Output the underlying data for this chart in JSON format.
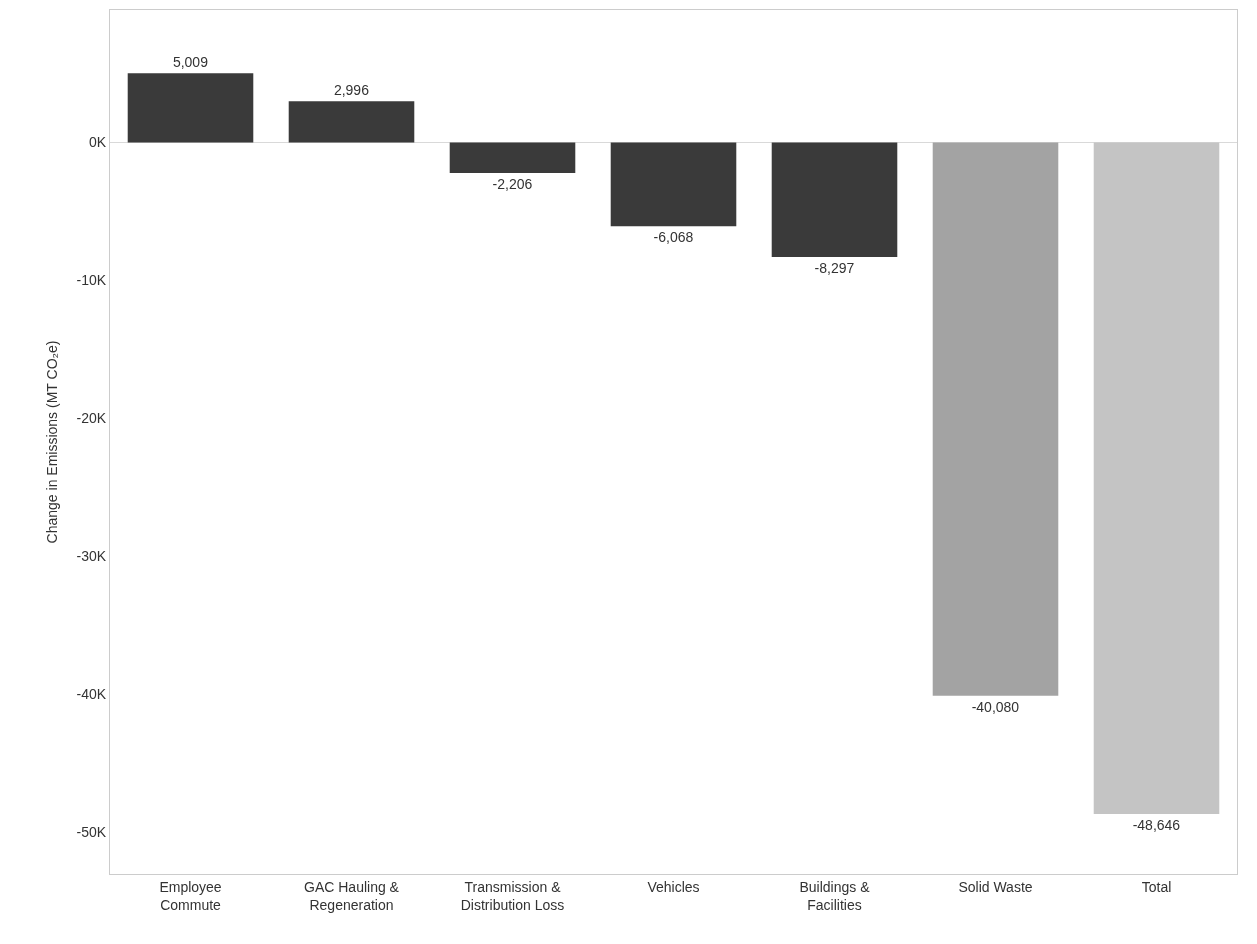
{
  "chart_data": {
    "type": "bar",
    "ylabel": "Change in Emissions (MT CO₂e)",
    "categories": [
      "Employee\nCommute",
      "GAC Hauling &\nRegeneration",
      "Transmission &\nDistribution Loss",
      "Vehicles",
      "Buildings &\nFacilities",
      "Solid Waste",
      "Total"
    ],
    "values": [
      5009,
      2996,
      -2206,
      -6068,
      -8297,
      -40080,
      -48646
    ],
    "colors": [
      "#3a3a3a",
      "#3a3a3a",
      "#3a3a3a",
      "#3a3a3a",
      "#3a3a3a",
      "#a3a3a3",
      "#c4c4c4"
    ],
    "value_labels": [
      "5,009",
      "2,996",
      "-2,206",
      "-6,068",
      "-8,297",
      "-40,080",
      "-48,646"
    ],
    "ylim": [
      -53000,
      9600
    ],
    "yticks": [
      {
        "value": 0,
        "label": "0K"
      },
      {
        "value": -10000,
        "label": "-10K"
      },
      {
        "value": -20000,
        "label": "-20K"
      },
      {
        "value": -30000,
        "label": "-30K"
      },
      {
        "value": -40000,
        "label": "-40K"
      },
      {
        "value": -50000,
        "label": "-50K"
      }
    ],
    "ref_lines": [
      {
        "axis": "y",
        "value": 0,
        "color": "#d9d9d9"
      }
    ],
    "grid": false
  }
}
